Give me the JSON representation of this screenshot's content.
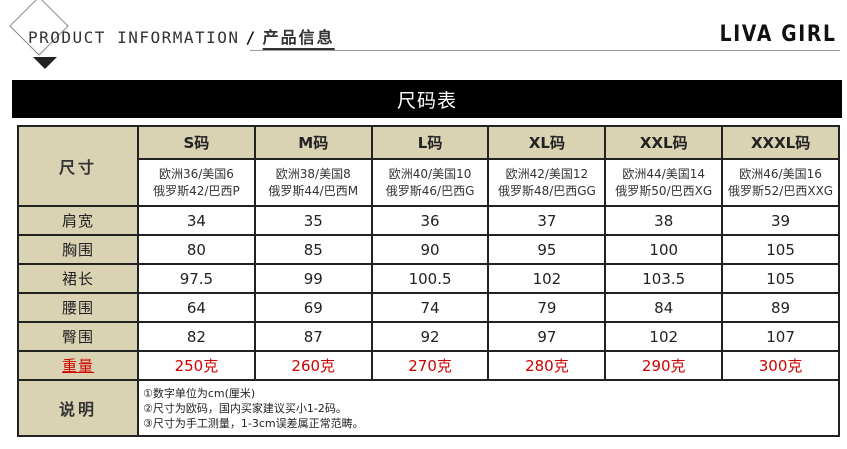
{
  "header": {
    "product_info": "PRODUCT INFORMATION",
    "slash": "/",
    "title_cn": "产品信息",
    "brand": "LIVA GIRL"
  },
  "bar_title": "尺码表",
  "table": {
    "corner_label": "尺寸",
    "sizes": [
      {
        "name": "S码",
        "line1": "欧洲36/美国6",
        "line2": "俄罗斯42/巴西P"
      },
      {
        "name": "M码",
        "line1": "欧洲38/美国8",
        "line2": "俄罗斯44/巴西M"
      },
      {
        "name": "L码",
        "line1": "欧洲40/美国10",
        "line2": "俄罗斯46/巴西G"
      },
      {
        "name": "XL码",
        "line1": "欧洲42/美国12",
        "line2": "俄罗斯48/巴西GG"
      },
      {
        "name": "XXL码",
        "line1": "欧洲44/美国14",
        "line2": "俄罗斯50/巴西XG"
      },
      {
        "name": "XXXL码",
        "line1": "欧洲46/美国16",
        "line2": "俄罗斯52/巴西XXG"
      }
    ],
    "rows": [
      {
        "label": "肩宽",
        "values": [
          "34",
          "35",
          "36",
          "37",
          "38",
          "39"
        ]
      },
      {
        "label": "胸围",
        "values": [
          "80",
          "85",
          "90",
          "95",
          "100",
          "105"
        ]
      },
      {
        "label": "裙长",
        "values": [
          "97.5",
          "99",
          "100.5",
          "102",
          "103.5",
          "105"
        ]
      },
      {
        "label": "腰围",
        "values": [
          "64",
          "69",
          "74",
          "79",
          "84",
          "89"
        ]
      },
      {
        "label": "臀围",
        "values": [
          "82",
          "87",
          "92",
          "97",
          "102",
          "107"
        ]
      },
      {
        "label": "重量",
        "values": [
          "250克",
          "260克",
          "270克",
          "280克",
          "290克",
          "300克"
        ]
      }
    ],
    "notes_label": "说明",
    "notes": [
      "①数字单位为cm(厘米)",
      "②尺寸为欧码，国内买家建议买小1-2码。",
      "③尺寸为手工测量，1-3cm误差属正常范畴。"
    ]
  },
  "colors": {
    "header_cell_bg": "#dad3b3",
    "bar_bg": "#000000",
    "weight_text": "#d00000"
  }
}
